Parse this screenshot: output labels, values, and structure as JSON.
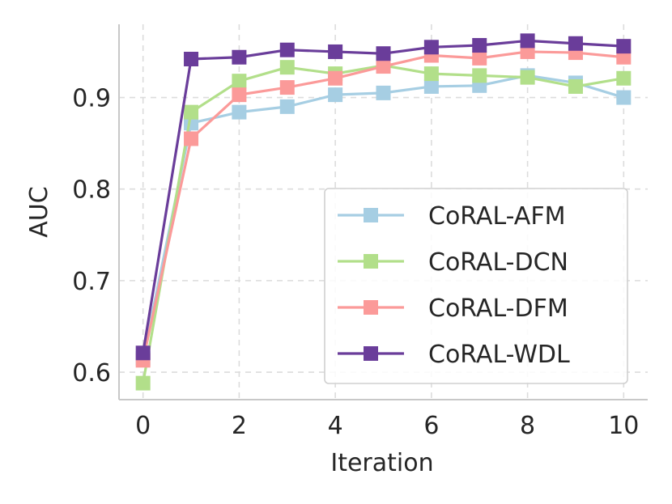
{
  "chart_data": {
    "type": "line",
    "title": "",
    "xlabel": "Iteration",
    "ylabel": "AUC",
    "x": [
      0,
      1,
      2,
      3,
      4,
      5,
      6,
      7,
      8,
      9,
      10
    ],
    "xlim": [
      -0.5,
      10.5
    ],
    "ylim": [
      0.57,
      0.98
    ],
    "xticks": [
      0,
      2,
      4,
      6,
      8,
      10
    ],
    "xtick_labels": [
      "0",
      "2",
      "4",
      "6",
      "8",
      "10"
    ],
    "yticks": [
      0.6,
      0.7,
      0.8,
      0.9
    ],
    "ytick_labels": [
      "0.6",
      "0.7",
      "0.8",
      "0.9"
    ],
    "grid": true,
    "legend_position": "lower-right",
    "marker": "square",
    "series": [
      {
        "name": "CoRAL-AFM",
        "color": "#a6cee3",
        "values": [
          0.615,
          0.872,
          0.884,
          0.89,
          0.903,
          0.905,
          0.912,
          0.913,
          0.924,
          0.916,
          0.9
        ]
      },
      {
        "name": "CoRAL-DCN",
        "color": "#b2df8a",
        "values": [
          0.588,
          0.884,
          0.918,
          0.933,
          0.926,
          0.935,
          0.926,
          0.924,
          0.922,
          0.912,
          0.921
        ]
      },
      {
        "name": "CoRAL-DFM",
        "color": "#fb9a99",
        "values": [
          0.613,
          0.855,
          0.903,
          0.911,
          0.921,
          0.934,
          0.946,
          0.943,
          0.95,
          0.949,
          0.944
        ]
      },
      {
        "name": "CoRAL-WDL",
        "color": "#6a3d9a",
        "values": [
          0.621,
          0.942,
          0.944,
          0.952,
          0.95,
          0.948,
          0.955,
          0.957,
          0.962,
          0.959,
          0.956
        ]
      }
    ]
  }
}
